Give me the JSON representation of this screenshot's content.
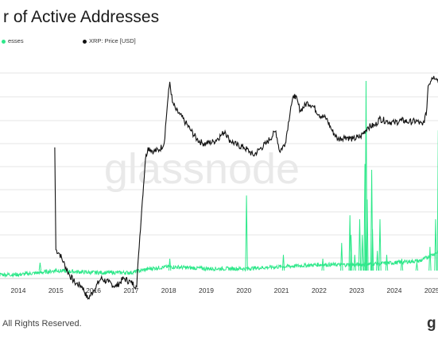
{
  "title": "r of Active Addresses",
  "legend": {
    "addresses_label": "esses",
    "price_label": "XRP: Price [USD]"
  },
  "watermark": "glassnode",
  "footer": "All Rights Reserved.",
  "logo": "g",
  "colors": {
    "price": "#111111",
    "addresses": "#2ee88a",
    "grid": "#dcdcdc"
  },
  "chart_data": {
    "type": "line",
    "x_ticks": [
      "2014",
      "2015",
      "2016",
      "2017",
      "2018",
      "2019",
      "2020",
      "2021",
      "2022",
      "2023",
      "2024",
      "2025"
    ],
    "grid": true,
    "series": [
      {
        "name": "XRP: Price [USD]",
        "axis": "log",
        "points": [
          [
            2014.97,
            -0.65
          ],
          [
            2015.0,
            -1.9
          ],
          [
            2015.1,
            -1.95
          ],
          [
            2015.2,
            -2.05
          ],
          [
            2015.35,
            -2.2
          ],
          [
            2015.5,
            -2.3
          ],
          [
            2015.7,
            -2.35
          ],
          [
            2015.85,
            -2.5
          ],
          [
            2016.0,
            -2.4
          ],
          [
            2016.2,
            -2.25
          ],
          [
            2016.4,
            -2.3
          ],
          [
            2016.6,
            -2.35
          ],
          [
            2016.8,
            -2.25
          ],
          [
            2017.0,
            -2.3
          ],
          [
            2017.15,
            -2.35
          ],
          [
            2017.2,
            -1.95
          ],
          [
            2017.3,
            -1.3
          ],
          [
            2017.38,
            -0.8
          ],
          [
            2017.45,
            -0.65
          ],
          [
            2017.6,
            -0.7
          ],
          [
            2017.75,
            -0.68
          ],
          [
            2017.88,
            -0.6
          ],
          [
            2017.97,
            -0.1
          ],
          [
            2018.03,
            0.15
          ],
          [
            2018.1,
            -0.1
          ],
          [
            2018.2,
            -0.2
          ],
          [
            2018.3,
            -0.25
          ],
          [
            2018.45,
            -0.35
          ],
          [
            2018.6,
            -0.45
          ],
          [
            2018.75,
            -0.55
          ],
          [
            2018.9,
            -0.6
          ],
          [
            2019.0,
            -0.6
          ],
          [
            2019.2,
            -0.58
          ],
          [
            2019.4,
            -0.5
          ],
          [
            2019.5,
            -0.45
          ],
          [
            2019.6,
            -0.55
          ],
          [
            2019.8,
            -0.62
          ],
          [
            2020.0,
            -0.65
          ],
          [
            2020.15,
            -0.7
          ],
          [
            2020.25,
            -0.75
          ],
          [
            2020.4,
            -0.68
          ],
          [
            2020.6,
            -0.6
          ],
          [
            2020.85,
            -0.45
          ],
          [
            2020.95,
            -0.7
          ],
          [
            2021.1,
            -0.6
          ],
          [
            2021.25,
            -0.15
          ],
          [
            2021.35,
            0.0
          ],
          [
            2021.5,
            -0.2
          ],
          [
            2021.7,
            -0.1
          ],
          [
            2021.85,
            -0.15
          ],
          [
            2022.0,
            -0.25
          ],
          [
            2022.2,
            -0.3
          ],
          [
            2022.35,
            -0.45
          ],
          [
            2022.5,
            -0.55
          ],
          [
            2022.7,
            -0.52
          ],
          [
            2022.9,
            -0.55
          ],
          [
            2023.1,
            -0.52
          ],
          [
            2023.3,
            -0.4
          ],
          [
            2023.5,
            -0.38
          ],
          [
            2023.6,
            -0.3
          ],
          [
            2023.8,
            -0.33
          ],
          [
            2024.0,
            -0.35
          ],
          [
            2024.2,
            -0.32
          ],
          [
            2024.4,
            -0.34
          ],
          [
            2024.6,
            -0.33
          ],
          [
            2024.75,
            -0.38
          ],
          [
            2024.85,
            -0.25
          ],
          [
            2024.9,
            0.1
          ],
          [
            2025.0,
            0.2
          ],
          [
            2025.05,
            0.22
          ],
          [
            2025.15,
            0.18
          ],
          [
            2025.25,
            0.12
          ],
          [
            2025.35,
            0.15
          ]
        ]
      },
      {
        "name": "Number of Active Addresses",
        "axis": "linear",
        "baseline_points": [
          [
            2013.0,
            0.02
          ],
          [
            2014.0,
            0.02
          ],
          [
            2014.6,
            0.03
          ],
          [
            2015.0,
            0.04
          ],
          [
            2016.0,
            0.03
          ],
          [
            2017.0,
            0.03
          ],
          [
            2017.5,
            0.05
          ],
          [
            2018.0,
            0.06
          ],
          [
            2019.0,
            0.05
          ],
          [
            2020.0,
            0.05
          ],
          [
            2021.0,
            0.06
          ],
          [
            2022.0,
            0.07
          ],
          [
            2023.0,
            0.07
          ],
          [
            2024.0,
            0.08
          ],
          [
            2024.7,
            0.09
          ],
          [
            2025.0,
            0.12
          ],
          [
            2025.35,
            0.15
          ]
        ],
        "spikes": [
          [
            2014.58,
            0.08
          ],
          [
            2015.0,
            0.05
          ],
          [
            2018.03,
            0.1
          ],
          [
            2020.07,
            0.42
          ],
          [
            2021.05,
            0.12
          ],
          [
            2022.1,
            0.1
          ],
          [
            2022.6,
            0.18
          ],
          [
            2022.82,
            0.32
          ],
          [
            2022.85,
            0.22
          ],
          [
            2022.95,
            0.12
          ],
          [
            2023.08,
            0.3
          ],
          [
            2023.15,
            0.22
          ],
          [
            2023.22,
            0.58
          ],
          [
            2023.25,
            1.0
          ],
          [
            2023.28,
            0.4
          ],
          [
            2023.4,
            0.55
          ],
          [
            2023.42,
            0.25
          ],
          [
            2023.55,
            0.14
          ],
          [
            2023.62,
            0.3
          ],
          [
            2023.8,
            0.12
          ],
          [
            2024.2,
            0.1
          ],
          [
            2024.6,
            0.08
          ],
          [
            2024.95,
            0.16
          ],
          [
            2025.1,
            0.3
          ],
          [
            2025.17,
            0.75
          ],
          [
            2025.28,
            0.55
          ],
          [
            2025.32,
            0.68
          ]
        ]
      }
    ]
  }
}
